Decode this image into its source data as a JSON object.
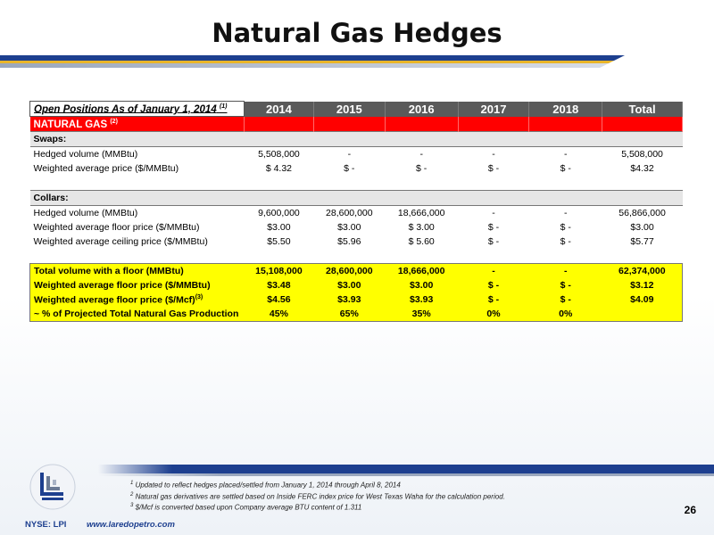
{
  "title": "Natural Gas Hedges",
  "table": {
    "header": {
      "label": "Open Positions As of January 1, 2014",
      "label_sup": "(1)",
      "years": [
        "2014",
        "2015",
        "2016",
        "2017",
        "2018",
        "Total"
      ]
    },
    "gas_label": "NATURAL GAS",
    "gas_sup": "(2)",
    "swaps": {
      "section": "Swaps:",
      "rows": [
        {
          "label": "Hedged volume (MMBtu)",
          "values": [
            "5,508,000",
            "-",
            "-",
            "-",
            "-",
            "5,508,000"
          ]
        },
        {
          "label": "Weighted average price ($/MMBtu)",
          "values": [
            "$ 4.32",
            "$ -",
            "$ -",
            "$ -",
            "$ -",
            "$4.32"
          ]
        }
      ]
    },
    "collars": {
      "section": "Collars:",
      "rows": [
        {
          "label": "Hedged volume (MMBtu)",
          "values": [
            "9,600,000",
            "28,600,000",
            "18,666,000",
            "-",
            "-",
            "56,866,000"
          ]
        },
        {
          "label": "Weighted average floor price ($/MMBtu)",
          "values": [
            "$3.00",
            "$3.00",
            "$ 3.00",
            "$ -",
            "$ -",
            "$3.00"
          ]
        },
        {
          "label": "Weighted average ceiling price ($/MMBtu)",
          "values": [
            "$5.50",
            "$5.96",
            "$ 5.60",
            "$ -",
            "$ -",
            "$5.77"
          ]
        }
      ]
    },
    "totals": [
      {
        "label": "Total volume with a floor (MMBtu)",
        "sup": "",
        "values": [
          "15,108,000",
          "28,600,000",
          "18,666,000",
          "-",
          "-",
          "62,374,000"
        ]
      },
      {
        "label": "Weighted average floor price ($/MMBtu)",
        "sup": "",
        "values": [
          "$3.48",
          "$3.00",
          "$3.00",
          "$ -",
          "$ -",
          "$3.12"
        ]
      },
      {
        "label": "Weighted average floor price ($/Mcf)",
        "sup": "(3)",
        "values": [
          "$4.56",
          "$3.93",
          "$3.93",
          "$ -",
          "$ -",
          "$4.09"
        ]
      },
      {
        "label": "~ % of Projected Total Natural Gas Production",
        "sup": "",
        "values": [
          "45%",
          "65%",
          "35%",
          "0%",
          "0%",
          ""
        ]
      }
    ]
  },
  "footnotes": [
    {
      "num": "1",
      "text": "Updated to reflect hedges placed/settled from January 1, 2014 through April 8, 2014"
    },
    {
      "num": "2",
      "text": "Natural gas derivatives are settled based on Inside FERC index price for West Texas Waha for the calculation period."
    },
    {
      "num": "3",
      "text": "$/Mcf is converted based upon Company average BTU content of 1.311"
    }
  ],
  "page_number": "26",
  "ticker": "NYSE: LPI",
  "website": "www.laredopetro.com",
  "colors": {
    "brand_blue": "#1d3f8f",
    "accent_gold": "#e9b52a",
    "highlight_yellow": "#ffff00",
    "gas_red": "#ff0000"
  }
}
